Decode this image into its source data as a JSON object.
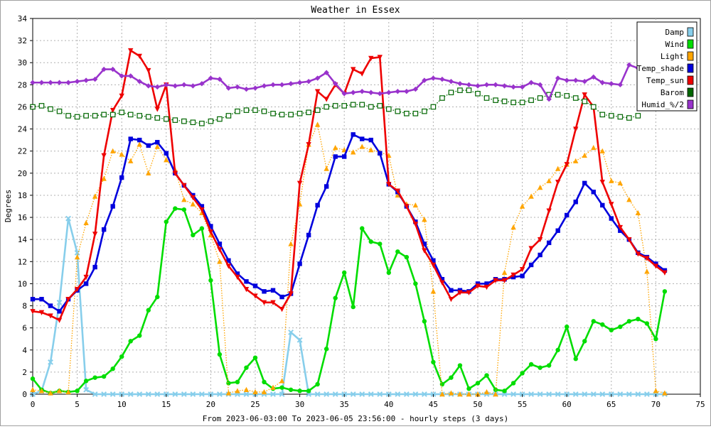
{
  "chart_data": {
    "type": "line",
    "title": "Weather in Essex",
    "xlabel": "From 2023-06-03:00 To 2023-06-05 23:56:00 - hourly steps (3 days)",
    "ylabel": "Degrees",
    "xlim": [
      0,
      75
    ],
    "ylim": [
      0,
      34
    ],
    "x_ticks": [
      0,
      5,
      10,
      15,
      20,
      25,
      30,
      35,
      40,
      45,
      50,
      55,
      60,
      65,
      70,
      75
    ],
    "y_ticks": [
      0,
      2,
      4,
      6,
      8,
      10,
      12,
      14,
      16,
      18,
      20,
      22,
      24,
      26,
      28,
      30,
      32,
      34
    ],
    "grid": true,
    "legend_position": "top-right",
    "series": [
      {
        "name": "Damp",
        "color": "#87ceeb",
        "style": "solid",
        "marker": "x",
        "x": [
          0,
          1,
          2,
          3,
          4,
          5,
          6,
          7,
          8,
          9,
          10,
          11,
          12,
          13,
          14,
          15,
          16,
          17,
          18,
          19,
          20,
          21,
          22,
          23,
          24,
          25,
          26,
          27,
          28,
          29,
          30,
          31,
          32,
          33,
          34,
          35,
          36,
          37,
          38,
          39,
          40,
          41,
          42,
          43,
          44,
          45,
          46,
          47,
          48,
          49,
          50,
          51,
          52,
          53,
          54,
          55,
          56,
          57,
          58,
          59,
          60,
          61,
          62,
          63,
          64,
          65,
          66,
          67,
          68,
          69,
          70,
          71
        ],
        "values": [
          0,
          0.3,
          2.9,
          8.3,
          15.9,
          12.8,
          0.4,
          0,
          0,
          0,
          0,
          0,
          0,
          0,
          0,
          0,
          0,
          0,
          0,
          0,
          0,
          0,
          0,
          0,
          0,
          0,
          0,
          0,
          0,
          5.6,
          4.9,
          0,
          0,
          0,
          0,
          0,
          0,
          0,
          0,
          0,
          0,
          0,
          0,
          0,
          0,
          0,
          0,
          0,
          0,
          0,
          0,
          0,
          0,
          0,
          0,
          0,
          0,
          0,
          0,
          0,
          0,
          0,
          0,
          0,
          0,
          0,
          0,
          0,
          0,
          0,
          0,
          0
        ]
      },
      {
        "name": "Wind",
        "color": "#00dd00",
        "style": "solid",
        "marker": "circle",
        "x": [
          0,
          1,
          2,
          3,
          4,
          5,
          6,
          7,
          8,
          9,
          10,
          11,
          12,
          13,
          14,
          15,
          16,
          17,
          18,
          19,
          20,
          21,
          22,
          23,
          24,
          25,
          26,
          27,
          28,
          29,
          30,
          31,
          32,
          33,
          34,
          35,
          36,
          37,
          38,
          39,
          40,
          41,
          42,
          43,
          44,
          45,
          46,
          47,
          48,
          49,
          50,
          51,
          52,
          53,
          54,
          55,
          56,
          57,
          58,
          59,
          60,
          61,
          62,
          63,
          64,
          65,
          66,
          67,
          68,
          69,
          70,
          71
        ],
        "values": [
          1.4,
          0.4,
          0.1,
          0.3,
          0.2,
          0.3,
          1.2,
          1.5,
          1.6,
          2.3,
          3.4,
          4.8,
          5.3,
          7.6,
          8.8,
          15.6,
          16.8,
          16.7,
          14.4,
          15,
          10.3,
          3.6,
          1,
          1.1,
          2.4,
          3.3,
          1.1,
          0.5,
          0.6,
          0.4,
          0.3,
          0.3,
          0.9,
          4.1,
          8.7,
          11,
          7.9,
          15,
          13.8,
          13.6,
          11,
          12.9,
          12.4,
          10,
          6.6,
          2.9,
          0.9,
          1.5,
          2.6,
          0.5,
          1,
          1.7,
          0.4,
          0.3,
          1,
          1.9,
          2.7,
          2.4,
          2.6,
          4,
          6.1,
          3.2,
          4.8,
          6.6,
          6.3,
          5.8,
          6.1,
          6.6,
          6.8,
          6.4,
          5,
          9.3
        ]
      },
      {
        "name": "Light",
        "color": "#ffa500",
        "style": "dotted",
        "marker": "triangle",
        "x": [
          0,
          1,
          2,
          3,
          4,
          5,
          6,
          7,
          8,
          9,
          10,
          11,
          12,
          13,
          14,
          15,
          16,
          17,
          18,
          19,
          20,
          21,
          22,
          23,
          24,
          25,
          26,
          27,
          28,
          29,
          30,
          31,
          32,
          33,
          34,
          35,
          36,
          37,
          38,
          39,
          40,
          41,
          42,
          43,
          44,
          45,
          46,
          47,
          48,
          49,
          50,
          51,
          52,
          53,
          54,
          55,
          56,
          57,
          58,
          59,
          60,
          61,
          62,
          63,
          64,
          65,
          66,
          67,
          68,
          69,
          70,
          71
        ],
        "values": [
          0.4,
          0.3,
          0.1,
          0.3,
          0.2,
          12.4,
          15.5,
          17.9,
          19.5,
          22,
          21.7,
          21.1,
          22.6,
          20,
          22.4,
          21.2,
          20.3,
          17.6,
          17.2,
          16.4,
          14.4,
          12,
          0.1,
          0.3,
          0.4,
          0.2,
          0.2,
          0.6,
          1.2,
          13.6,
          17.2,
          22.6,
          24.4,
          20.4,
          22.3,
          22.1,
          21.9,
          22.4,
          22.1,
          21.9,
          21.6,
          18,
          17.2,
          17.1,
          15.8,
          9.3,
          0,
          0.1,
          0,
          0,
          0,
          0.2,
          0,
          11,
          15.1,
          17,
          17.9,
          18.7,
          19.3,
          20.4,
          20.8,
          21.1,
          21.6,
          22.3,
          22,
          19.3,
          19.1,
          17.6,
          16.4,
          11.1,
          0.3,
          0.1
        ]
      },
      {
        "name": "Temp_shade",
        "color": "#0000dd",
        "style": "solid",
        "marker": "square",
        "x": [
          0,
          1,
          2,
          3,
          4,
          5,
          6,
          7,
          8,
          9,
          10,
          11,
          12,
          13,
          14,
          15,
          16,
          17,
          18,
          19,
          20,
          21,
          22,
          23,
          24,
          25,
          26,
          27,
          28,
          29,
          30,
          31,
          32,
          33,
          34,
          35,
          36,
          37,
          38,
          39,
          40,
          41,
          42,
          43,
          44,
          45,
          46,
          47,
          48,
          49,
          50,
          51,
          52,
          53,
          54,
          55,
          56,
          57,
          58,
          59,
          60,
          61,
          62,
          63,
          64,
          65,
          66,
          67,
          68,
          69,
          70,
          71
        ],
        "values": [
          8.6,
          8.6,
          8,
          7.5,
          8.6,
          9.4,
          10,
          11.5,
          14.9,
          17,
          19.6,
          23.1,
          23,
          22.5,
          22.8,
          21.8,
          20,
          18.9,
          18,
          17,
          15.2,
          13.6,
          12.1,
          10.9,
          10.2,
          9.8,
          9.3,
          9.4,
          8.8,
          9.1,
          11.8,
          14.4,
          17.1,
          18.8,
          21.5,
          21.5,
          23.5,
          23.1,
          23,
          21.8,
          19,
          18.3,
          17,
          15.6,
          13.6,
          12.1,
          10.4,
          9.4,
          9.4,
          9.3,
          10,
          10,
          10.4,
          10.4,
          10.6,
          10.7,
          11.7,
          12.6,
          13.7,
          14.8,
          16.2,
          17.4,
          19.1,
          18.3,
          17.1,
          15.9,
          14.8,
          14,
          12.8,
          12.4,
          11.8,
          11.2
        ]
      },
      {
        "name": "Temp_sun",
        "color": "#ee0000",
        "style": "solid",
        "marker": "triangle-down",
        "x": [
          0,
          1,
          2,
          3,
          4,
          5,
          6,
          7,
          8,
          9,
          10,
          11,
          12,
          13,
          14,
          15,
          16,
          17,
          18,
          19,
          20,
          21,
          22,
          23,
          24,
          25,
          26,
          27,
          28,
          29,
          30,
          31,
          32,
          33,
          34,
          35,
          36,
          37,
          38,
          39,
          40,
          41,
          42,
          43,
          44,
          45,
          46,
          47,
          48,
          49,
          50,
          51,
          52,
          53,
          54,
          55,
          56,
          57,
          58,
          59,
          60,
          61,
          62,
          63,
          64,
          65,
          66,
          67,
          68,
          69,
          70,
          71
        ],
        "values": [
          7.5,
          7.4,
          7.1,
          6.7,
          8.6,
          9.5,
          10.6,
          14.5,
          21.6,
          25.7,
          27,
          31.1,
          30.6,
          29.3,
          25.8,
          28,
          20,
          18.9,
          17.8,
          16.7,
          14.7,
          13.1,
          11.6,
          10.6,
          9.5,
          8.9,
          8.3,
          8.3,
          7.7,
          9.1,
          19.1,
          22.6,
          27.4,
          26.7,
          28,
          27.2,
          29.4,
          29,
          30.4,
          30.5,
          19,
          18.4,
          17,
          15.4,
          13,
          11.7,
          10.1,
          8.6,
          9.2,
          9.2,
          9.8,
          9.7,
          10.3,
          10.3,
          10.8,
          11.3,
          13.2,
          14,
          16.6,
          19.2,
          20.8,
          24,
          27.1,
          26,
          19.2,
          17.2,
          15.1,
          14,
          12.7,
          12.3,
          11.6,
          11
        ]
      },
      {
        "name": "Barom",
        "color": "#006600",
        "style": "dotted",
        "marker": "square-open",
        "x": [
          0,
          1,
          2,
          3,
          4,
          5,
          6,
          7,
          8,
          9,
          10,
          11,
          12,
          13,
          14,
          15,
          16,
          17,
          18,
          19,
          20,
          21,
          22,
          23,
          24,
          25,
          26,
          27,
          28,
          29,
          30,
          31,
          32,
          33,
          34,
          35,
          36,
          37,
          38,
          39,
          40,
          41,
          42,
          43,
          44,
          45,
          46,
          47,
          48,
          49,
          50,
          51,
          52,
          53,
          54,
          55,
          56,
          57,
          58,
          59,
          60,
          61,
          62,
          63,
          64,
          65,
          66,
          67,
          68
        ],
        "values": [
          26,
          26.1,
          25.8,
          25.6,
          25.2,
          25.1,
          25.2,
          25.2,
          25.3,
          25.3,
          25.5,
          25.3,
          25.2,
          25.1,
          25,
          24.9,
          24.8,
          24.7,
          24.6,
          24.5,
          24.7,
          24.9,
          25.2,
          25.6,
          25.7,
          25.7,
          25.6,
          25.4,
          25.3,
          25.3,
          25.4,
          25.5,
          25.7,
          26,
          26.1,
          26.1,
          26.2,
          26.2,
          26,
          26.1,
          25.8,
          25.6,
          25.4,
          25.4,
          25.6,
          26,
          26.8,
          27.3,
          27.5,
          27.5,
          27.2,
          26.8,
          26.6,
          26.5,
          26.4,
          26.4,
          26.6,
          26.8,
          27.1,
          27.1,
          27,
          26.8,
          26.5,
          26,
          25.3,
          25.2,
          25.1,
          25,
          25.2
        ]
      },
      {
        "name": "Humid_%/2",
        "color": "#9933cc",
        "style": "solid",
        "marker": "diamond",
        "x": [
          0,
          1,
          2,
          3,
          4,
          5,
          6,
          7,
          8,
          9,
          10,
          11,
          12,
          13,
          14,
          15,
          16,
          17,
          18,
          19,
          20,
          21,
          22,
          23,
          24,
          25,
          26,
          27,
          28,
          29,
          30,
          31,
          32,
          33,
          34,
          35,
          36,
          37,
          38,
          39,
          40,
          41,
          42,
          43,
          44,
          45,
          46,
          47,
          48,
          49,
          50,
          51,
          52,
          53,
          54,
          55,
          56,
          57,
          58,
          59,
          60,
          61,
          62,
          63,
          64,
          65,
          66,
          67,
          68
        ],
        "values": [
          28.2,
          28.2,
          28.2,
          28.2,
          28.2,
          28.3,
          28.4,
          28.5,
          29.4,
          29.4,
          28.8,
          28.8,
          28.3,
          27.9,
          27.8,
          28,
          27.9,
          28,
          27.9,
          28.1,
          28.6,
          28.5,
          27.7,
          27.8,
          27.6,
          27.7,
          27.9,
          28,
          28,
          28.1,
          28.2,
          28.3,
          28.6,
          29.1,
          28.1,
          27.2,
          27.3,
          27.4,
          27.3,
          27.2,
          27.3,
          27.4,
          27.4,
          27.6,
          28.4,
          28.6,
          28.5,
          28.3,
          28.1,
          28,
          27.9,
          28,
          28,
          27.9,
          27.8,
          27.8,
          28.2,
          28,
          26.7,
          28.6,
          28.4,
          28.4,
          28.3,
          28.7,
          28.2,
          28.1,
          28,
          29.8,
          29.5
        ]
      }
    ]
  }
}
